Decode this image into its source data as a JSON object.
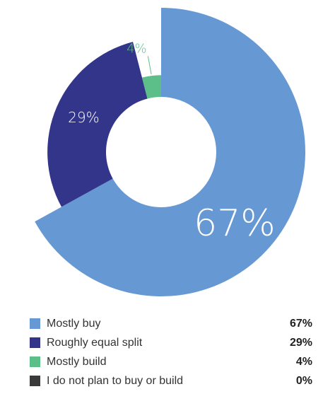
{
  "chart_data": {
    "type": "pie",
    "style": "donut",
    "title": "",
    "slices": [
      {
        "label": "Mostly buy",
        "value": 67,
        "display": "67%",
        "color": "#6699d4"
      },
      {
        "label": "Roughly equal split",
        "value": 29,
        "display": "29%",
        "color": "#33358a"
      },
      {
        "label": "Mostly build",
        "value": 4,
        "display": "4%",
        "color": "#5cbf8a"
      },
      {
        "label": "I do not plan to buy or build",
        "value": 0,
        "display": "0%",
        "color": "#3a3a3a"
      }
    ],
    "legend_position": "bottom"
  },
  "legend": {
    "items": [
      {
        "label": "Mostly buy",
        "value": "67%",
        "color": "#6699d4"
      },
      {
        "label": "Roughly equal split",
        "value": "29%",
        "color": "#33358a"
      },
      {
        "label": "Mostly build",
        "value": "4%",
        "color": "#5cbf8a"
      },
      {
        "label": "I do not plan to buy or build",
        "value": "0%",
        "color": "#3a3a3a"
      }
    ]
  }
}
